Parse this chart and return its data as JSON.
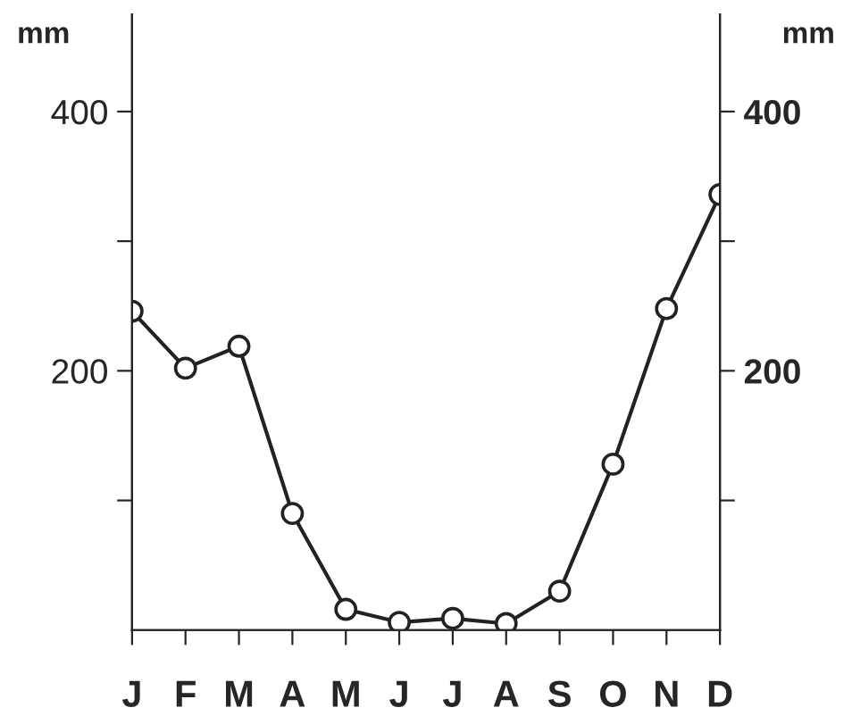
{
  "chart_data": {
    "type": "line",
    "ylabel": "mm",
    "y2label": "mm",
    "categories": [
      "J",
      "F",
      "M",
      "A",
      "M",
      "J",
      "J",
      "A",
      "S",
      "O",
      "N",
      "D"
    ],
    "series": [
      {
        "color": "#222222",
        "values": [
          246,
          202,
          219,
          90,
          16,
          6,
          9,
          5,
          30,
          128,
          248,
          336
        ]
      }
    ],
    "ylim": [
      0,
      475
    ],
    "yticks": [
      {
        "value": 100,
        "label": null
      },
      200,
      {
        "value": 300,
        "label": null
      },
      400
    ],
    "y2lim": [
      0,
      475
    ],
    "y2ticks": [
      {
        "value": 100,
        "label": null
      },
      200,
      {
        "value": 300,
        "label": null
      },
      400
    ],
    "marker": "circle",
    "line_style": "solid",
    "grid": false,
    "legend": false
  }
}
